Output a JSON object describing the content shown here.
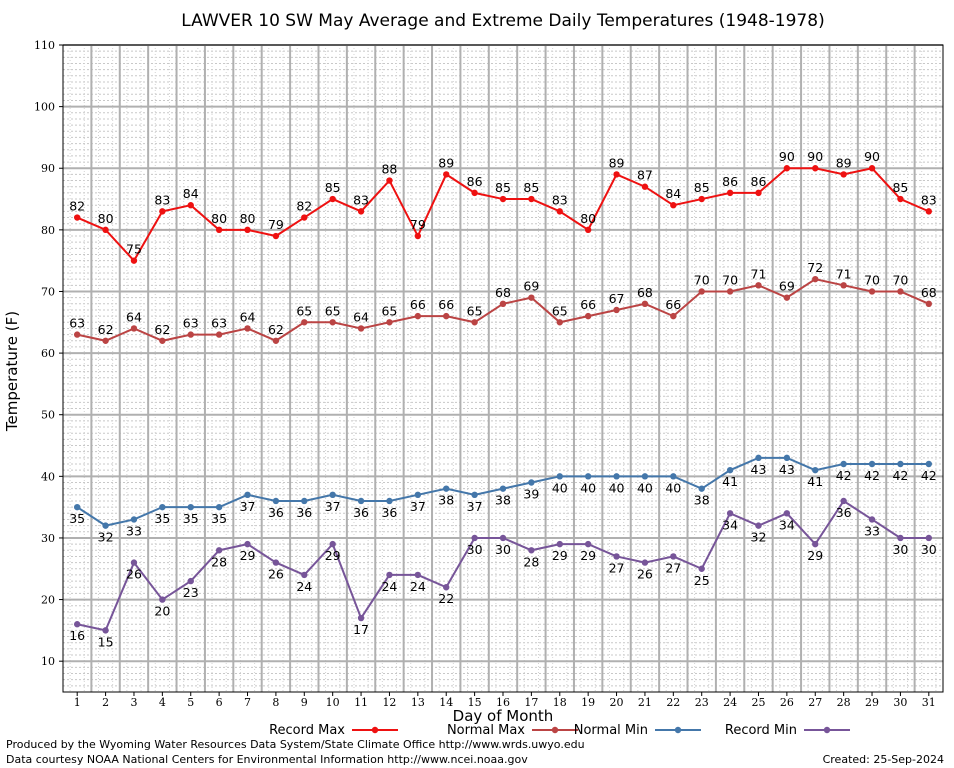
{
  "chart_data": {
    "type": "line",
    "title": "LAWVER 10 SW May Average and Extreme Daily Temperatures (1948-1978)",
    "xlabel": "Day of Month",
    "ylabel": "Temperature (F)",
    "x": [
      1,
      2,
      3,
      4,
      5,
      6,
      7,
      8,
      9,
      10,
      11,
      12,
      13,
      14,
      15,
      16,
      17,
      18,
      19,
      20,
      21,
      22,
      23,
      24,
      25,
      26,
      27,
      28,
      29,
      30,
      31
    ],
    "xlim": [
      0.5,
      31.5
    ],
    "ylim": [
      5,
      110
    ],
    "yticks": [
      10,
      20,
      30,
      40,
      50,
      60,
      70,
      80,
      90,
      100,
      110
    ],
    "grid": true,
    "legend_position": "bottom",
    "series": [
      {
        "name": "Record Max",
        "color": "#ee1111",
        "label_side": "above",
        "values": [
          82,
          80,
          75,
          83,
          84,
          80,
          80,
          79,
          82,
          85,
          83,
          88,
          79,
          89,
          86,
          85,
          85,
          83,
          80,
          89,
          87,
          84,
          85,
          86,
          86,
          90,
          90,
          89,
          90,
          85,
          83
        ]
      },
      {
        "name": "Normal Max",
        "color": "#bb4444",
        "label_side": "above",
        "values": [
          63,
          62,
          64,
          62,
          63,
          63,
          64,
          62,
          65,
          65,
          64,
          65,
          66,
          66,
          65,
          68,
          69,
          65,
          66,
          67,
          68,
          66,
          70,
          70,
          71,
          69,
          72,
          71,
          70,
          70,
          68
        ]
      },
      {
        "name": "Normal Min",
        "color": "#4477aa",
        "label_side": "below",
        "values": [
          35,
          32,
          33,
          35,
          35,
          35,
          37,
          36,
          36,
          37,
          36,
          36,
          37,
          38,
          37,
          38,
          39,
          40,
          40,
          40,
          40,
          40,
          38,
          41,
          43,
          43,
          41,
          42,
          42,
          42,
          42
        ]
      },
      {
        "name": "Record Min",
        "color": "#775599",
        "label_side": "below",
        "values": [
          16,
          15,
          26,
          20,
          23,
          28,
          29,
          26,
          24,
          29,
          17,
          24,
          24,
          22,
          30,
          30,
          28,
          29,
          29,
          27,
          26,
          27,
          25,
          34,
          32,
          34,
          29,
          36,
          33,
          30,
          30
        ]
      }
    ]
  },
  "footer": {
    "produced_by": "Produced by the Wyoming Water Resources Data System/State Climate Office http://www.wrds.uwyo.edu",
    "courtesy": "Data courtesy NOAA National Centers for Environmental Information http://www.ncei.noaa.gov",
    "created": "Created:  25-Sep-2024"
  }
}
